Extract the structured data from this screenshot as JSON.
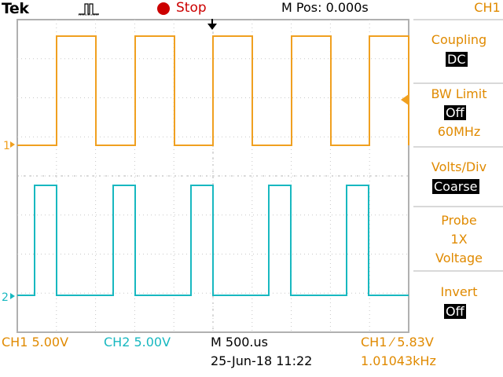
{
  "header": {
    "brand": "Tek",
    "run_state": "Stop",
    "m_pos": "M Pos: 0.000s"
  },
  "colors": {
    "ch1": "#f0a020",
    "ch2": "#18b8c0",
    "menu_text": "#e08a00",
    "stop": "#cc0000"
  },
  "icons": {
    "acquisition": "pulse-acq-icon",
    "stop": "stop-circle-icon",
    "trigger_pos": "trigger-position-arrow-icon",
    "trigger_level": "trigger-level-arrow-icon"
  },
  "side_menu": {
    "title": "CH1",
    "coupling": {
      "label": "Coupling",
      "value": "DC"
    },
    "bw_limit": {
      "label": "BW Limit",
      "value": "Off",
      "note": "60MHz"
    },
    "volts_div": {
      "label": "Volts/Div",
      "value": "Coarse"
    },
    "probe": {
      "label": "Probe",
      "value1": "1X",
      "value2": "Voltage"
    },
    "invert": {
      "label": "Invert",
      "value": "Off"
    }
  },
  "channels": {
    "ch1_marker": "1",
    "ch2_marker": "2"
  },
  "status": {
    "ch1_scale": "CH1  5.00V",
    "ch2_scale": "CH2  5.00V",
    "timebase": "M 500.us",
    "date": "25-Jun-18 11:22",
    "trigger": "CH1 ⁄ 5.83V",
    "frequency": "1.01043kHz"
  }
}
